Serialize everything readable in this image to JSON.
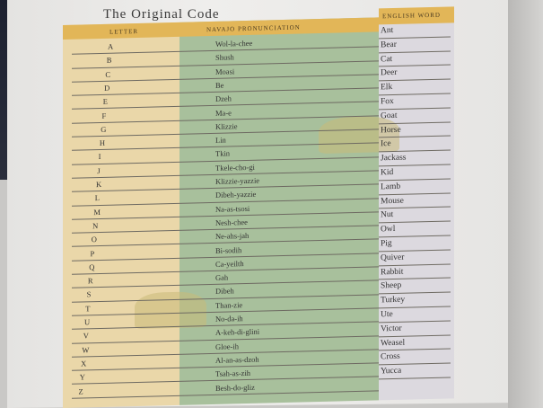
{
  "title": "The Original Code",
  "headers": {
    "letter": "Letter",
    "navajo": "Navajo Pronunciation",
    "english": "English Word"
  },
  "colors": {
    "header": "#e2b658",
    "letter_col": "#ead7a9",
    "navajo_col": "#a8c09c",
    "english_col": "#dcd9df"
  },
  "rows": [
    {
      "letter": "A",
      "navajo": "Wol-la-chee",
      "english": "Ant"
    },
    {
      "letter": "B",
      "navajo": "Shush",
      "english": "Bear"
    },
    {
      "letter": "C",
      "navajo": "Moasi",
      "english": "Cat"
    },
    {
      "letter": "D",
      "navajo": "Be",
      "english": "Deer"
    },
    {
      "letter": "E",
      "navajo": "Dzeh",
      "english": "Elk"
    },
    {
      "letter": "F",
      "navajo": "Ma-e",
      "english": "Fox"
    },
    {
      "letter": "G",
      "navajo": "Klizzie",
      "english": "Goat"
    },
    {
      "letter": "H",
      "navajo": "Lin",
      "english": "Horse"
    },
    {
      "letter": "I",
      "navajo": "Tkin",
      "english": "Ice"
    },
    {
      "letter": "J",
      "navajo": "Tkele-cho-gi",
      "english": "Jackass"
    },
    {
      "letter": "K",
      "navajo": "Klizzie-yazzie",
      "english": "Kid"
    },
    {
      "letter": "L",
      "navajo": "Dibeh-yazzie",
      "english": "Lamb"
    },
    {
      "letter": "M",
      "navajo": "Na-as-tsosi",
      "english": "Mouse"
    },
    {
      "letter": "N",
      "navajo": "Nesh-chee",
      "english": "Nut"
    },
    {
      "letter": "O",
      "navajo": "Ne-ahs-jah",
      "english": "Owl"
    },
    {
      "letter": "P",
      "navajo": "Bi-sodih",
      "english": "Pig"
    },
    {
      "letter": "Q",
      "navajo": "Ca-yeilth",
      "english": "Quiver"
    },
    {
      "letter": "R",
      "navajo": "Gah",
      "english": "Rabbit"
    },
    {
      "letter": "S",
      "navajo": "Dibeh",
      "english": "Sheep"
    },
    {
      "letter": "T",
      "navajo": "Than-zie",
      "english": "Turkey"
    },
    {
      "letter": "U",
      "navajo": "No-da-ih",
      "english": "Ute"
    },
    {
      "letter": "V",
      "navajo": "A-keh-di-glini",
      "english": "Victor"
    },
    {
      "letter": "W",
      "navajo": "Gloe-ih",
      "english": "Weasel"
    },
    {
      "letter": "X",
      "navajo": "Al-an-as-dzoh",
      "english": "Cross"
    },
    {
      "letter": "Y",
      "navajo": "Tsah-as-zih",
      "english": "Yucca"
    },
    {
      "letter": "Z",
      "navajo": "Besh-do-gliz",
      "english": ""
    }
  ]
}
